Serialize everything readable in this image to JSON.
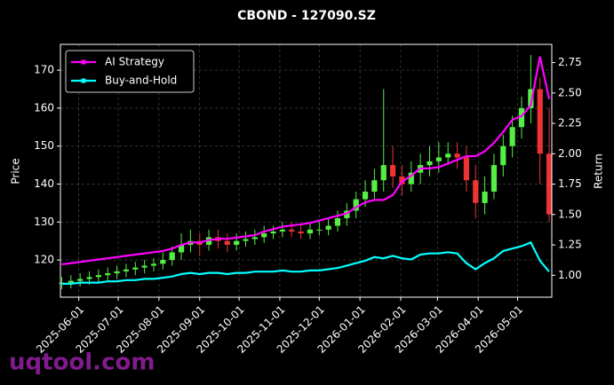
{
  "chart_data": {
    "type": "candlestick",
    "title": "CBOND - 127090.SZ",
    "ylabel": "Price",
    "y2label": "Return",
    "x": [
      "2025-05-19",
      "2025-05-26",
      "2025-06-02",
      "2025-06-09",
      "2025-06-16",
      "2025-06-23",
      "2025-06-30",
      "2025-07-07",
      "2025-07-14",
      "2025-07-21",
      "2025-07-28",
      "2025-08-04",
      "2025-08-11",
      "2025-08-18",
      "2025-08-25",
      "2025-09-01",
      "2025-09-08",
      "2025-09-15",
      "2025-09-22",
      "2025-09-29",
      "2025-10-06",
      "2025-10-13",
      "2025-10-20",
      "2025-10-27",
      "2025-11-03",
      "2025-11-10",
      "2025-11-17",
      "2025-11-24",
      "2025-12-01",
      "2025-12-08",
      "2025-12-15",
      "2025-12-22",
      "2025-12-29",
      "2026-01-05",
      "2026-01-12",
      "2026-01-19",
      "2026-01-26",
      "2026-02-02",
      "2026-02-09",
      "2026-02-16",
      "2026-02-23",
      "2026-03-02",
      "2026-03-09",
      "2026-03-16",
      "2026-03-23",
      "2026-03-30",
      "2026-04-06",
      "2026-04-13",
      "2026-04-20",
      "2026-04-27",
      "2026-05-04",
      "2026-05-11",
      "2026-05-18",
      "2026-05-25"
    ],
    "open": [
      113.8,
      114,
      114.5,
      115,
      115.5,
      116,
      116.5,
      117,
      117.5,
      118,
      118.5,
      119,
      120,
      122,
      124,
      125,
      124,
      126,
      125,
      124,
      125,
      125.5,
      126,
      127,
      127.5,
      128,
      127.5,
      127,
      128,
      128,
      129,
      131,
      133,
      136,
      138,
      141,
      145,
      142,
      140,
      143,
      145,
      146,
      147,
      148,
      147,
      141,
      135,
      138,
      145,
      150,
      155,
      160,
      165,
      148
    ],
    "high": [
      115.5,
      116,
      116.5,
      117,
      117.5,
      118,
      118.5,
      119,
      119.5,
      120,
      120.5,
      122,
      123.5,
      127,
      128,
      127,
      128,
      128,
      127,
      127,
      127.5,
      128,
      129,
      129,
      130,
      130,
      129.5,
      129.5,
      130,
      131,
      133,
      135,
      138,
      141,
      144,
      165,
      150,
      145,
      146,
      148,
      150,
      151,
      151,
      151,
      150,
      145,
      142,
      148,
      153,
      158,
      163,
      174,
      168,
      160
    ],
    "low": [
      112.3,
      112.5,
      113,
      113.5,
      114,
      114.5,
      115,
      115.5,
      116,
      116.5,
      117,
      117.5,
      118.5,
      120,
      122,
      121,
      122.5,
      123,
      122,
      122.5,
      123.5,
      124,
      124.5,
      125.5,
      126,
      126,
      125.5,
      125.5,
      126.5,
      126.5,
      127.5,
      129,
      131,
      134,
      136,
      138,
      139,
      137,
      138,
      140,
      142,
      143,
      145,
      144,
      138,
      131,
      132,
      136,
      142,
      147,
      152,
      156,
      140,
      130
    ],
    "close": [
      114,
      114.5,
      115,
      115.5,
      116,
      116.5,
      117,
      117.5,
      118,
      118.5,
      119,
      120,
      122,
      124,
      125,
      124,
      126,
      125,
      124,
      125,
      125.5,
      126,
      127,
      127.5,
      128,
      127.5,
      127,
      128,
      128,
      129,
      131,
      133,
      136,
      138,
      141,
      145,
      142,
      140,
      143,
      145,
      146,
      147,
      148,
      147,
      141,
      135,
      138,
      145,
      150,
      155,
      160,
      165,
      148,
      132
    ],
    "up_color": "#55ee44",
    "down_color": "#ee3333",
    "series": [
      {
        "name": "AI Strategy",
        "color": "#ff00ff",
        "axis": "y2",
        "values": [
          1.09,
          1.1,
          1.11,
          1.12,
          1.13,
          1.14,
          1.15,
          1.16,
          1.17,
          1.18,
          1.19,
          1.2,
          1.22,
          1.25,
          1.27,
          1.27,
          1.29,
          1.3,
          1.3,
          1.31,
          1.32,
          1.33,
          1.36,
          1.38,
          1.4,
          1.41,
          1.42,
          1.43,
          1.45,
          1.47,
          1.49,
          1.51,
          1.56,
          1.6,
          1.62,
          1.62,
          1.66,
          1.77,
          1.82,
          1.88,
          1.88,
          1.89,
          1.92,
          1.95,
          1.98,
          1.98,
          2.02,
          2.09,
          2.18,
          2.28,
          2.31,
          2.4,
          2.8,
          2.45
        ]
      },
      {
        "name": "Buy-and-Hold",
        "color": "#00ffff",
        "axis": "y2",
        "values": [
          0.93,
          0.93,
          0.94,
          0.94,
          0.94,
          0.95,
          0.95,
          0.96,
          0.96,
          0.97,
          0.97,
          0.98,
          0.99,
          1.01,
          1.02,
          1.01,
          1.02,
          1.02,
          1.01,
          1.02,
          1.02,
          1.03,
          1.03,
          1.03,
          1.04,
          1.03,
          1.03,
          1.04,
          1.04,
          1.05,
          1.06,
          1.08,
          1.1,
          1.12,
          1.15,
          1.14,
          1.16,
          1.14,
          1.13,
          1.17,
          1.18,
          1.18,
          1.19,
          1.18,
          1.1,
          1.05,
          1.1,
          1.14,
          1.2,
          1.22,
          1.24,
          1.27,
          1.12,
          1.03
        ]
      }
    ],
    "xlim": [
      "2025-05-18",
      "2026-05-27"
    ],
    "xticks": [
      "2025-06-01",
      "2025-07-01",
      "2025-08-01",
      "2025-09-01",
      "2025-10-01",
      "2025-11-01",
      "2025-12-01",
      "2026-01-01",
      "2026-02-01",
      "2026-03-01",
      "2026-04-01",
      "2026-05-01"
    ],
    "ylim": [
      110.2,
      176.8
    ],
    "yticks": [
      120,
      130,
      140,
      150,
      160,
      170
    ],
    "y2lim": [
      0.82,
      2.9
    ],
    "y2ticks": [
      {
        "value": 1,
        "label": "1.00"
      },
      {
        "value": 1.25,
        "label": "1.25"
      },
      {
        "value": 1.5,
        "label": "1.50"
      },
      {
        "value": 1.75,
        "label": "1.75"
      },
      {
        "value": 2,
        "label": "2.00"
      },
      {
        "value": 2.25,
        "label": "2.25"
      },
      {
        "value": 2.5,
        "label": "2.50"
      },
      {
        "value": 2.75,
        "label": "2.75"
      }
    ],
    "grid": true,
    "legend": "upper left"
  },
  "watermark": "uqtool.com"
}
